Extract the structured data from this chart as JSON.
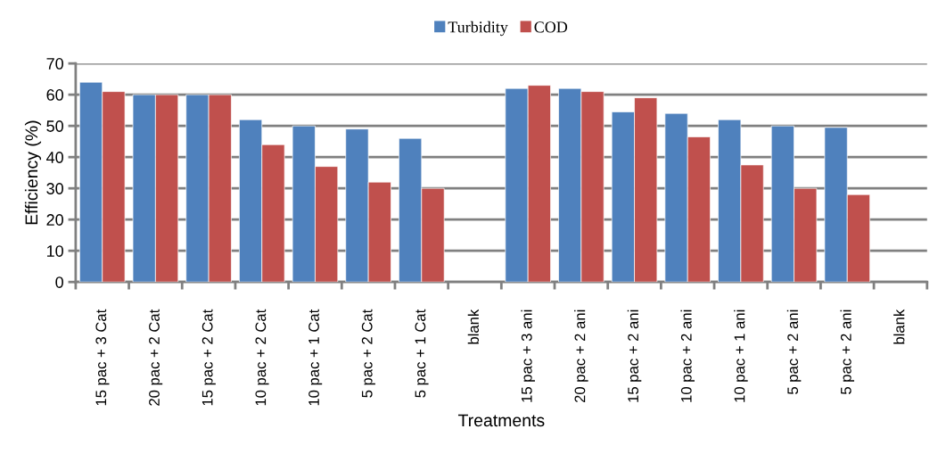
{
  "chart_data": {
    "type": "bar",
    "xlabel": "Treatments",
    "ylabel": "Efficiency (%)",
    "categories": [
      "15 pac + 3 Cat",
      "20 pac + 2 Cat",
      "15 pac + 2 Cat",
      "10 pac + 2 Cat",
      "10 pac + 1 Cat",
      "5 pac + 2 Cat",
      "5 pac + 1 Cat",
      "blank",
      "15 pac + 3 ani",
      "20 pac + 2 ani",
      "15 pac + 2 ani",
      "10 pac + 2 ani",
      "10 pac + 1 ani",
      "5 pac + 2 ani",
      "5 pac + 2 ani",
      "blank"
    ],
    "series": [
      {
        "name": "Turbidity",
        "color": "#4f81bd",
        "values": [
          64,
          60,
          60,
          52,
          50,
          49,
          46,
          null,
          62,
          62,
          54.5,
          54,
          52,
          50,
          49.5,
          null
        ]
      },
      {
        "name": "COD",
        "color": "#c0504d",
        "values": [
          61,
          60,
          60,
          44,
          37,
          32,
          30,
          null,
          63,
          61,
          59,
          46.5,
          37.5,
          30,
          28,
          null
        ]
      }
    ],
    "ylim": [
      0,
      70
    ],
    "yticks": [
      0,
      10,
      20,
      30,
      40,
      50,
      60,
      70
    ],
    "grid": "y",
    "legend": "top"
  }
}
